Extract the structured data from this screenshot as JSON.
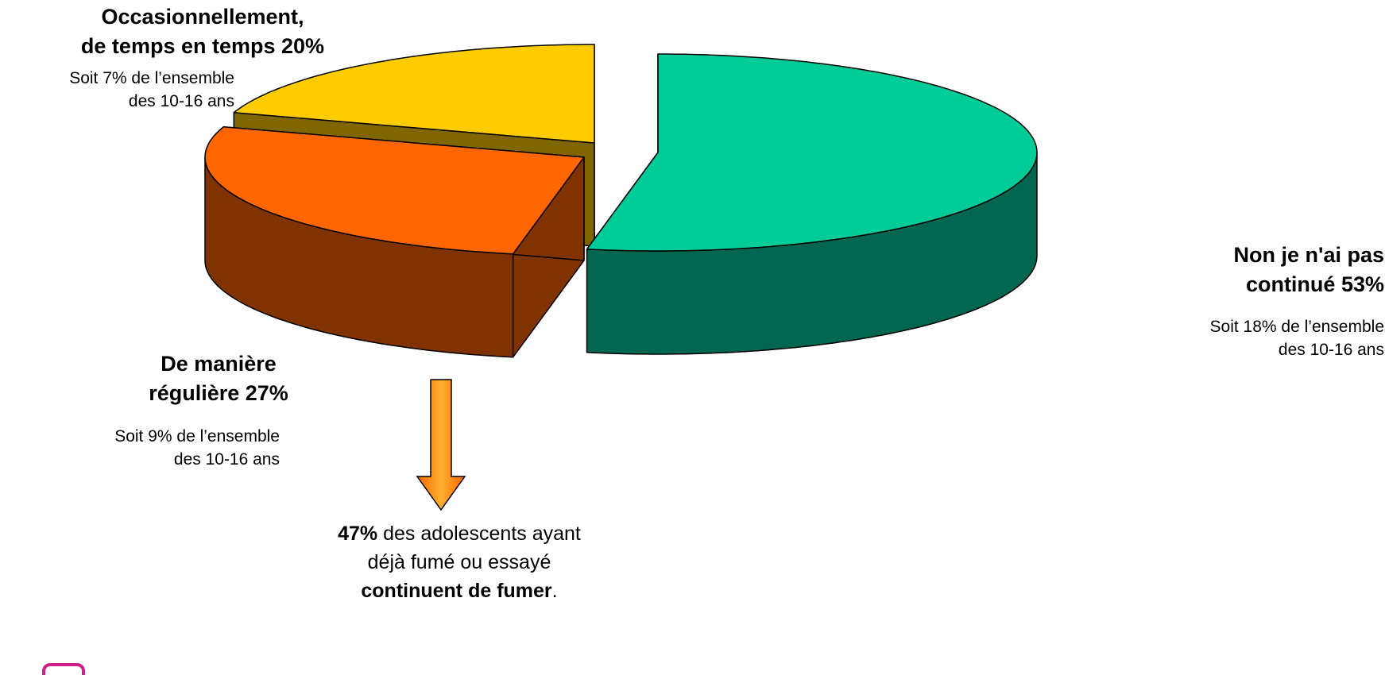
{
  "chart_data": {
    "type": "pie3d",
    "categories": [
      "Non je n'ai pas continué",
      "De manière régulière",
      "Occasionnellement, de temps en temps"
    ],
    "values": [
      53,
      27,
      20
    ],
    "value_labels": [
      "53%",
      "27%",
      "20%"
    ],
    "colors": [
      "#00CC99",
      "#FF6600",
      "#FFCC00"
    ],
    "side_colors": [
      "#006650",
      "#803300",
      "#806600"
    ],
    "sub_labels": [
      "Soit 18% de l’ensemble des 10-16 ans",
      "Soit 9% de l’ensemble des 10-16 ans",
      "Soit 7% de l’ensemble des 10-16 ans"
    ],
    "annotation": [
      "47%",
      " des adolescents ayant",
      "déjà fumé ou essayé",
      "continuent de fumer",
      "."
    ]
  }
}
